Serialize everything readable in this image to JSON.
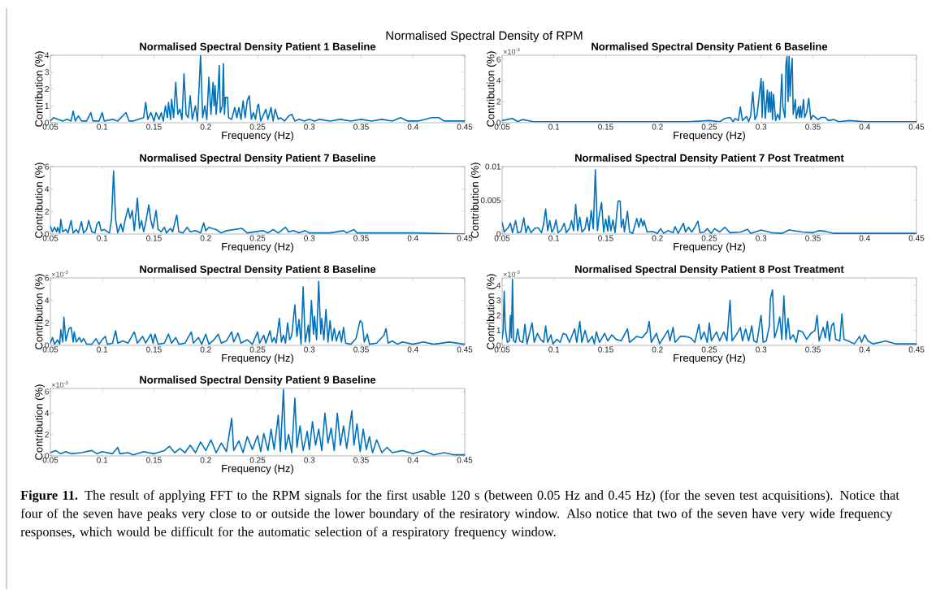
{
  "chart_data": [
    {
      "type": "line",
      "title": "Normalised Spectral Density Patient 1 Baseline",
      "xlabel": "Frequency (Hz)",
      "ylabel": "Contribution (%)",
      "color": "#0072bd",
      "xlim": [
        0.05,
        0.45
      ],
      "ylim": [
        0,
        4
      ],
      "xticks": [
        0.05,
        0.1,
        0.15,
        0.2,
        0.25,
        0.3,
        0.35,
        0.4,
        0.45
      ],
      "yticks": [
        0,
        1,
        2,
        3,
        4
      ],
      "annotations": [
        "Normalised Spectral Density of RPM",
        "**Figure 11.** The result of applying FFT to the RPM signals for the first usable 120 s (between 0.05 Hz and 0.45 Hz) (for the seven test acquisitions). Notice that four of the seven have peaks very close to or outside the lower boundary of the resiratory window. Also notice that two of the seven have very wide frequency responses, which would be difficult for the automatic selection of a respiratory frequency window."
      ],
      "x": [
        0.05,
        0.053,
        0.057,
        0.062,
        0.066,
        0.07,
        0.072,
        0.074,
        0.077,
        0.08,
        0.085,
        0.089,
        0.091,
        0.097,
        0.1,
        0.102,
        0.11,
        0.115,
        0.123,
        0.126,
        0.13,
        0.135,
        0.14,
        0.142,
        0.144,
        0.147,
        0.15,
        0.152,
        0.155,
        0.157,
        0.159,
        0.161,
        0.163,
        0.164,
        0.166,
        0.167,
        0.169,
        0.171,
        0.173,
        0.175,
        0.177,
        0.179,
        0.181,
        0.183,
        0.185,
        0.187,
        0.19,
        0.192,
        0.195,
        0.197,
        0.199,
        0.201,
        0.203,
        0.205,
        0.207,
        0.208,
        0.209,
        0.21,
        0.212,
        0.213,
        0.214,
        0.216,
        0.217,
        0.218,
        0.219,
        0.221,
        0.222,
        0.225,
        0.228,
        0.23,
        0.232,
        0.234,
        0.236,
        0.238,
        0.24,
        0.242,
        0.244,
        0.246,
        0.248,
        0.25,
        0.251,
        0.253,
        0.256,
        0.258,
        0.26,
        0.263,
        0.265,
        0.267,
        0.27,
        0.272,
        0.276,
        0.28,
        0.283,
        0.286,
        0.29,
        0.295,
        0.3,
        0.305,
        0.31,
        0.32,
        0.33,
        0.34,
        0.35,
        0.36,
        0.37,
        0.38,
        0.388,
        0.395,
        0.405,
        0.418,
        0.425,
        0.43,
        0.44,
        0.45
      ],
      "values": [
        0.1,
        0.3,
        0.2,
        0.1,
        0.2,
        0.1,
        0.7,
        0.1,
        0.4,
        0.1,
        0.1,
        0.6,
        0.1,
        0.1,
        0.6,
        0.1,
        0.2,
        0.1,
        0.6,
        0.1,
        0.1,
        0.2,
        0.3,
        1.2,
        0.2,
        0.6,
        0.1,
        0.6,
        0.2,
        0.6,
        0.1,
        1.0,
        0.3,
        1.2,
        0.2,
        1.4,
        0.3,
        2.4,
        0.5,
        0.8,
        0.2,
        2.9,
        0.5,
        0.3,
        1.6,
        0.2,
        1.0,
        0.1,
        4.0,
        0.3,
        1.0,
        0.2,
        2.7,
        0.5,
        2.4,
        1.0,
        2.2,
        0.5,
        2.0,
        3.4,
        0.6,
        1.0,
        3.5,
        0.5,
        1.5,
        1.5,
        0.3,
        0.2,
        0.9,
        0.3,
        0.9,
        0.2,
        1.3,
        0.3,
        1.3,
        1.6,
        0.2,
        0.6,
        0.2,
        1.0,
        1.1,
        0.1,
        0.5,
        0.8,
        0.2,
        0.9,
        0.1,
        0.8,
        0.2,
        0.3,
        0.1,
        0.4,
        0.5,
        0.1,
        0.2,
        0.1,
        0.2,
        0.1,
        0.2,
        0.1,
        0.2,
        0.1,
        0.2,
        0.1,
        0.2,
        0.1,
        0.3,
        0.1,
        0.1,
        0.3,
        0.3,
        0.1,
        0.1,
        0.1
      ]
    },
    {
      "type": "line",
      "title": "Normalised Spectral Density Patient 6 Baseline",
      "xlabel": "Frequency (Hz)",
      "ylabel": "Contribution (%)",
      "color": "#0072bd",
      "xlim": [
        0.05,
        0.45
      ],
      "ylim": [
        0,
        6.4
      ],
      "xticks": [
        0.05,
        0.1,
        0.15,
        0.2,
        0.25,
        0.3,
        0.35,
        0.4,
        0.45
      ],
      "yticks": [
        0,
        2,
        4,
        6
      ],
      "annotations": [
        "×10$^{-3}$"
      ],
      "x": [
        0.05,
        0.06,
        0.065,
        0.07,
        0.08,
        0.1,
        0.13,
        0.16,
        0.2,
        0.23,
        0.25,
        0.26,
        0.265,
        0.27,
        0.273,
        0.275,
        0.278,
        0.28,
        0.282,
        0.286,
        0.288,
        0.29,
        0.292,
        0.294,
        0.296,
        0.298,
        0.3,
        0.301,
        0.302,
        0.304,
        0.306,
        0.307,
        0.308,
        0.309,
        0.31,
        0.311,
        0.312,
        0.314,
        0.316,
        0.318,
        0.32,
        0.321,
        0.323,
        0.324,
        0.325,
        0.326,
        0.327,
        0.328,
        0.329,
        0.33,
        0.331,
        0.333,
        0.334,
        0.336,
        0.337,
        0.338,
        0.339,
        0.341,
        0.342,
        0.344,
        0.346,
        0.348,
        0.35,
        0.355,
        0.358,
        0.362,
        0.365,
        0.37,
        0.375,
        0.385,
        0.4,
        0.45
      ],
      "values": [
        0.2,
        0.4,
        0.1,
        0.3,
        0.1,
        0.1,
        0.1,
        0.1,
        0.1,
        0.1,
        0.2,
        0.1,
        0.4,
        0.5,
        0.1,
        0.4,
        0.2,
        1.5,
        0.2,
        0.6,
        0.1,
        0.7,
        2.9,
        0.3,
        0.7,
        2.4,
        4.2,
        0.5,
        3.9,
        0.4,
        3.1,
        1.0,
        2.9,
        1.0,
        2.9,
        0.3,
        2.7,
        0.2,
        0.8,
        0.3,
        4.6,
        1.5,
        0.5,
        5.6,
        6.3,
        2.0,
        6.3,
        2.5,
        4.9,
        6.1,
        0.8,
        2.2,
        0.4,
        1.5,
        0.5,
        1.6,
        0.5,
        2.2,
        0.5,
        1.0,
        2.3,
        0.3,
        0.7,
        0.3,
        0.5,
        0.5,
        0.2,
        0.3,
        0.1,
        0.2,
        0.1,
        0.1
      ]
    },
    {
      "type": "line",
      "title": "Normalised Spectral Density Patient 7 Baseline",
      "xlabel": "Frequency (Hz)",
      "ylabel": "Contribution (%)",
      "color": "#0072bd",
      "xlim": [
        0.05,
        0.45
      ],
      "ylim": [
        0,
        6
      ],
      "xticks": [
        0.05,
        0.1,
        0.15,
        0.2,
        0.25,
        0.3,
        0.35,
        0.4,
        0.45
      ],
      "yticks": [
        0,
        2,
        4,
        6
      ],
      "x": [
        0.05,
        0.052,
        0.054,
        0.056,
        0.057,
        0.059,
        0.06,
        0.062,
        0.065,
        0.067,
        0.07,
        0.072,
        0.075,
        0.077,
        0.08,
        0.082,
        0.085,
        0.087,
        0.09,
        0.093,
        0.095,
        0.097,
        0.099,
        0.102,
        0.105,
        0.107,
        0.109,
        0.111,
        0.113,
        0.115,
        0.118,
        0.12,
        0.122,
        0.125,
        0.127,
        0.129,
        0.131,
        0.134,
        0.136,
        0.138,
        0.14,
        0.142,
        0.145,
        0.147,
        0.149,
        0.152,
        0.154,
        0.157,
        0.16,
        0.162,
        0.166,
        0.168,
        0.172,
        0.174,
        0.178,
        0.182,
        0.185,
        0.19,
        0.195,
        0.198,
        0.2,
        0.203,
        0.206,
        0.21,
        0.215,
        0.22,
        0.235,
        0.24,
        0.255,
        0.26,
        0.265,
        0.27,
        0.277,
        0.28,
        0.285,
        0.29,
        0.296,
        0.3,
        0.32,
        0.333,
        0.336,
        0.343,
        0.346,
        0.36,
        0.38,
        0.4,
        0.45
      ],
      "values": [
        0.7,
        0.2,
        0.6,
        0.2,
        0.6,
        0.1,
        1.3,
        0.2,
        0.4,
        0.1,
        1.2,
        0.1,
        0.4,
        0.1,
        1.1,
        0.1,
        0.4,
        1.2,
        0.2,
        0.1,
        0.9,
        1.1,
        0.3,
        0.4,
        0.2,
        0.1,
        1.3,
        5.6,
        1.3,
        0.1,
        0.9,
        0.2,
        1.2,
        2.3,
        1.4,
        2.1,
        0.3,
        3.2,
        0.5,
        1.2,
        0.2,
        1.0,
        2.6,
        1.2,
        0.5,
        2.1,
        0.4,
        0.2,
        0.6,
        0.1,
        0.5,
        0.2,
        1.7,
        0.2,
        0.1,
        0.6,
        0.2,
        0.3,
        0.1,
        1.0,
        0.3,
        0.6,
        0.5,
        0.4,
        0.1,
        0.3,
        0.5,
        0.1,
        0.3,
        0.1,
        0.4,
        0.1,
        0.6,
        0.2,
        0.3,
        0.1,
        0.3,
        0.1,
        0.1,
        0.3,
        0.1,
        0.4,
        0.1,
        0.1,
        0.1,
        0.1,
        0
      ]
    },
    {
      "type": "line",
      "title": "Normalised Spectral Density Patient 7 Post Treatment",
      "xlabel": "Frequency (Hz)",
      "ylabel": "Contribution (%)",
      "color": "#0072bd",
      "xlim": [
        0.05,
        0.45
      ],
      "ylim": [
        0,
        0.01
      ],
      "xticks": [
        0.05,
        0.1,
        0.15,
        0.2,
        0.25,
        0.3,
        0.35,
        0.4,
        0.45
      ],
      "yticks": [
        0,
        0.005,
        0.01
      ],
      "x": [
        0.05,
        0.052,
        0.056,
        0.058,
        0.06,
        0.063,
        0.065,
        0.068,
        0.071,
        0.073,
        0.075,
        0.078,
        0.082,
        0.085,
        0.088,
        0.09,
        0.092,
        0.094,
        0.096,
        0.098,
        0.1,
        0.102,
        0.104,
        0.107,
        0.11,
        0.112,
        0.115,
        0.117,
        0.119,
        0.121,
        0.123,
        0.125,
        0.127,
        0.13,
        0.132,
        0.134,
        0.136,
        0.138,
        0.14,
        0.142,
        0.144,
        0.146,
        0.148,
        0.15,
        0.152,
        0.153,
        0.155,
        0.157,
        0.159,
        0.161,
        0.162,
        0.164,
        0.165,
        0.167,
        0.168,
        0.171,
        0.173,
        0.176,
        0.18,
        0.182,
        0.184,
        0.186,
        0.187,
        0.19,
        0.195,
        0.2,
        0.203,
        0.206,
        0.21,
        0.215,
        0.217,
        0.22,
        0.225,
        0.227,
        0.23,
        0.233,
        0.236,
        0.239,
        0.241,
        0.245,
        0.248,
        0.252,
        0.255,
        0.26,
        0.265,
        0.27,
        0.28,
        0.287,
        0.29,
        0.3,
        0.31,
        0.32,
        0.327,
        0.34,
        0.35,
        0.356,
        0.362,
        0.37,
        0.4,
        0.42,
        0.45
      ],
      "values": [
        0.0018,
        0.0003,
        0.001,
        0.0016,
        0.0002,
        0.002,
        0.0002,
        0.0003,
        0.0024,
        0.0002,
        0.0012,
        0.0002,
        0.0009,
        0.0009,
        0.0002,
        0.0014,
        0.0037,
        0.0005,
        0.002,
        0.0003,
        0.0008,
        0.0021,
        0.0002,
        0.0006,
        0.0016,
        0.0002,
        0.0008,
        0.002,
        0.0005,
        0.0044,
        0.0005,
        0.0025,
        0.0003,
        0.0008,
        0.0025,
        0.0005,
        0.0035,
        0.0008,
        0.0095,
        0.0005,
        0.003,
        0.0047,
        0.0003,
        0.0022,
        0.0004,
        0.0027,
        0.0005,
        0.0021,
        0.0002,
        0.0035,
        0.0049,
        0.0049,
        0.001,
        0.0022,
        0.0003,
        0.0034,
        0.0003,
        0.0001,
        0.0023,
        0.001,
        0.0023,
        0.0012,
        0.002,
        0.0003,
        0.0004,
        0.0001,
        0.0008,
        0.0001,
        0.0005,
        0.0002,
        0.0011,
        0.0001,
        0.0016,
        0.0003,
        0.001,
        0.0003,
        0.001,
        0.0019,
        0.0002,
        0.0003,
        0.0008,
        0.0001,
        0.0008,
        0.0003,
        0.001,
        0.0002,
        0.0003,
        0.0007,
        0.0001,
        0.0006,
        0.0002,
        0.0001,
        0.0006,
        0.0003,
        0.0002,
        0.0005,
        0.0004,
        0.0001,
        0.0001,
        0.0001,
        0.0001
      ]
    },
    {
      "type": "line",
      "title": "Normalised Spectral Density Patient 8 Baseline",
      "xlabel": "Frequency (Hz)",
      "ylabel": "Contribution (%)",
      "color": "#0072bd",
      "xlim": [
        0.05,
        0.45
      ],
      "ylim": [
        0,
        6
      ],
      "xticks": [
        0.05,
        0.1,
        0.15,
        0.2,
        0.25,
        0.3,
        0.35,
        0.4,
        0.45
      ],
      "yticks": [
        0,
        2,
        4,
        6
      ],
      "annotations": [
        "×10$^{-3}$"
      ],
      "x": [
        0.05,
        0.052,
        0.054,
        0.057,
        0.059,
        0.06,
        0.062,
        0.063,
        0.065,
        0.066,
        0.068,
        0.07,
        0.072,
        0.073,
        0.075,
        0.078,
        0.08,
        0.082,
        0.085,
        0.09,
        0.094,
        0.097,
        0.1,
        0.103,
        0.105,
        0.11,
        0.113,
        0.115,
        0.12,
        0.125,
        0.131,
        0.134,
        0.139,
        0.142,
        0.147,
        0.149,
        0.151,
        0.154,
        0.16,
        0.164,
        0.167,
        0.171,
        0.174,
        0.18,
        0.186,
        0.188,
        0.193,
        0.196,
        0.2,
        0.203,
        0.208,
        0.212,
        0.215,
        0.22,
        0.225,
        0.227,
        0.231,
        0.234,
        0.24,
        0.245,
        0.25,
        0.252,
        0.256,
        0.258,
        0.262,
        0.264,
        0.266,
        0.268,
        0.271,
        0.273,
        0.275,
        0.277,
        0.279,
        0.281,
        0.283,
        0.286,
        0.288,
        0.29,
        0.292,
        0.294,
        0.296,
        0.299,
        0.3,
        0.302,
        0.304,
        0.305,
        0.307,
        0.309,
        0.311,
        0.312,
        0.314,
        0.316,
        0.318,
        0.32,
        0.322,
        0.324,
        0.326,
        0.329,
        0.331,
        0.333,
        0.335,
        0.34,
        0.345,
        0.349,
        0.351,
        0.353,
        0.356,
        0.358,
        0.365,
        0.372,
        0.374,
        0.376,
        0.38,
        0.385,
        0.39,
        0.4,
        0.41,
        0.42,
        0.435,
        0.45
      ],
      "values": [
        0.2,
        0.7,
        0.1,
        0.5,
        0.1,
        1.4,
        0.3,
        2.5,
        0.4,
        0.8,
        1.5,
        1.6,
        0.3,
        1.2,
        0.3,
        0.7,
        0.3,
        0.6,
        0.1,
        0.1,
        0.6,
        0.1,
        0.5,
        0.8,
        0.1,
        0.2,
        1.3,
        0.2,
        0.4,
        0.2,
        1.2,
        0.2,
        0.8,
        0.2,
        1.0,
        0.2,
        1.0,
        0.1,
        0.2,
        1.0,
        0.2,
        0.7,
        0.1,
        0.2,
        1.2,
        0.2,
        0.7,
        0.1,
        1.0,
        0.1,
        0.5,
        1.0,
        0.2,
        0.4,
        1.2,
        0.3,
        1.1,
        0.2,
        0.5,
        0.1,
        1.2,
        0.2,
        0.9,
        0.2,
        1.3,
        0.3,
        0.7,
        0.2,
        2.4,
        0.3,
        0.9,
        0.2,
        2.0,
        0.5,
        0.9,
        3.6,
        0.8,
        2.3,
        0.1,
        5.2,
        0.3,
        1.8,
        0.3,
        4.0,
        1.0,
        2.6,
        0.5,
        5.7,
        1.0,
        2.4,
        0.5,
        3.2,
        0.3,
        2.2,
        0.4,
        1.5,
        0.4,
        1.3,
        0.3,
        1.6,
        0.2,
        0.1,
        0.6,
        2.2,
        2.0,
        0.3,
        1.0,
        0.1,
        0.2,
        0.9,
        1.5,
        0.2,
        0.4,
        0.1,
        0.3,
        0.1,
        0.3,
        0.1,
        0.3,
        0.1
      ]
    },
    {
      "type": "line",
      "title": "Normalised Spectral Density Patient 8 Post Treatment",
      "xlabel": "Frequency (Hz)",
      "ylabel": "Contribution (%)",
      "color": "#0072bd",
      "xlim": [
        0.05,
        0.45
      ],
      "ylim": [
        0,
        4.5
      ],
      "xticks": [
        0.05,
        0.1,
        0.15,
        0.2,
        0.25,
        0.3,
        0.35,
        0.4,
        0.45
      ],
      "yticks": [
        0,
        1,
        2,
        3,
        4
      ],
      "annotations": [
        "×10$^{-3}$"
      ],
      "x": [
        0.05,
        0.051,
        0.052,
        0.053,
        0.055,
        0.057,
        0.058,
        0.059,
        0.06,
        0.061,
        0.063,
        0.065,
        0.067,
        0.07,
        0.072,
        0.074,
        0.076,
        0.079,
        0.081,
        0.084,
        0.087,
        0.09,
        0.092,
        0.094,
        0.097,
        0.099,
        0.103,
        0.106,
        0.109,
        0.112,
        0.115,
        0.12,
        0.122,
        0.125,
        0.127,
        0.13,
        0.133,
        0.137,
        0.139,
        0.141,
        0.144,
        0.149,
        0.152,
        0.156,
        0.16,
        0.165,
        0.171,
        0.173,
        0.18,
        0.185,
        0.19,
        0.192,
        0.194,
        0.199,
        0.202,
        0.21,
        0.212,
        0.215,
        0.217,
        0.222,
        0.227,
        0.232,
        0.236,
        0.24,
        0.242,
        0.245,
        0.248,
        0.25,
        0.252,
        0.257,
        0.26,
        0.264,
        0.267,
        0.27,
        0.272,
        0.276,
        0.28,
        0.282,
        0.285,
        0.288,
        0.291,
        0.293,
        0.296,
        0.299,
        0.3,
        0.302,
        0.305,
        0.308,
        0.309,
        0.311,
        0.313,
        0.316,
        0.318,
        0.32,
        0.322,
        0.324,
        0.326,
        0.328,
        0.331,
        0.334,
        0.336,
        0.34,
        0.344,
        0.348,
        0.352,
        0.354,
        0.356,
        0.36,
        0.362,
        0.364,
        0.366,
        0.368,
        0.37,
        0.372,
        0.376,
        0.378,
        0.38,
        0.384,
        0.39,
        0.395,
        0.397,
        0.4,
        0.403,
        0.408,
        0.415,
        0.42,
        0.43,
        0.45
      ],
      "values": [
        0.4,
        1.0,
        3.6,
        1.2,
        0.2,
        0.3,
        2.0,
        0.5,
        4.4,
        0.3,
        0.2,
        1.1,
        0.3,
        0.2,
        1.4,
        0.1,
        0.7,
        1.5,
        0.2,
        0.8,
        0.4,
        0.2,
        1.3,
        0.2,
        0.7,
        0.1,
        0.4,
        0.2,
        0.8,
        0.7,
        0.2,
        1.1,
        0.2,
        1.6,
        0.2,
        1.0,
        0.2,
        0.6,
        0.1,
        0.9,
        0.2,
        0.8,
        0.3,
        0.7,
        0.4,
        0.3,
        1.1,
        0.2,
        0.6,
        0.5,
        0.9,
        1.6,
        0.2,
        0.8,
        0.1,
        1.0,
        0.3,
        1.2,
        0.2,
        0.6,
        0.6,
        0.5,
        0.2,
        1.4,
        0.4,
        0.9,
        0.2,
        1.5,
        0.3,
        0.9,
        0.3,
        0.9,
        0.3,
        3.0,
        0.3,
        0.7,
        1.2,
        0.3,
        1.1,
        0.3,
        1.3,
        0.3,
        0.2,
        1.6,
        2.0,
        0.2,
        0.3,
        1.3,
        3.1,
        3.7,
        0.5,
        1.2,
        1.9,
        0.4,
        3.3,
        0.4,
        1.8,
        0.4,
        0.7,
        0.2,
        1.0,
        0.9,
        0.4,
        0.8,
        1.0,
        2.0,
        0.3,
        1.2,
        0.5,
        1.6,
        0.3,
        1.3,
        1.5,
        0.4,
        0.3,
        2.1,
        0.4,
        0.3,
        0.1,
        0.6,
        0.2,
        0.7,
        0.3,
        0.1,
        0.2,
        0.3,
        0.1,
        0.1
      ]
    },
    {
      "type": "line",
      "title": "Normalised Spectral Density Patient 9 Baseline",
      "xlabel": "Frequency (Hz)",
      "ylabel": "Contribution (%)",
      "color": "#0072bd",
      "xlim": [
        0.05,
        0.45
      ],
      "ylim": [
        0,
        6.3
      ],
      "xticks": [
        0.05,
        0.1,
        0.15,
        0.2,
        0.25,
        0.3,
        0.35,
        0.4,
        0.45
      ],
      "yticks": [
        0,
        2,
        4,
        6
      ],
      "annotations": [
        "×10$^{-3}$"
      ],
      "x": [
        0.05,
        0.055,
        0.06,
        0.065,
        0.07,
        0.08,
        0.09,
        0.095,
        0.1,
        0.11,
        0.115,
        0.117,
        0.125,
        0.13,
        0.14,
        0.15,
        0.16,
        0.165,
        0.17,
        0.175,
        0.18,
        0.185,
        0.19,
        0.195,
        0.2,
        0.205,
        0.21,
        0.215,
        0.22,
        0.225,
        0.227,
        0.232,
        0.236,
        0.24,
        0.245,
        0.25,
        0.253,
        0.256,
        0.26,
        0.263,
        0.266,
        0.27,
        0.272,
        0.275,
        0.277,
        0.28,
        0.283,
        0.286,
        0.288,
        0.291,
        0.294,
        0.298,
        0.3,
        0.303,
        0.306,
        0.309,
        0.312,
        0.315,
        0.318,
        0.321,
        0.324,
        0.327,
        0.33,
        0.333,
        0.336,
        0.341,
        0.343,
        0.346,
        0.349,
        0.352,
        0.355,
        0.358,
        0.361,
        0.365,
        0.37,
        0.375,
        0.38,
        0.39,
        0.4,
        0.41,
        0.42,
        0.43,
        0.44,
        0.45
      ],
      "values": [
        0.3,
        0.5,
        0.2,
        0.4,
        0.2,
        0.3,
        0.5,
        0.2,
        0.4,
        0.2,
        0.8,
        0.2,
        0.3,
        0.1,
        0.4,
        0.2,
        0.5,
        0.9,
        0.3,
        0.7,
        0.3,
        1.0,
        0.3,
        1.3,
        0.5,
        1.5,
        0.3,
        1.2,
        0.4,
        3.5,
        0.5,
        1.4,
        0.3,
        1.8,
        0.6,
        1.9,
        0.4,
        2.1,
        0.5,
        2.5,
        0.6,
        3.8,
        0.4,
        6.2,
        0.6,
        2.0,
        0.3,
        5.4,
        0.8,
        2.8,
        0.5,
        2.3,
        0.6,
        3.2,
        1.0,
        2.5,
        0.5,
        4.0,
        1.2,
        2.6,
        0.5,
        4.0,
        1.0,
        2.8,
        0.7,
        4.2,
        1.0,
        3.0,
        0.4,
        2.5,
        0.6,
        1.8,
        0.3,
        1.5,
        0.3,
        0.8,
        0.3,
        0.5,
        0.2,
        0.5,
        0.1,
        0.3,
        0.1,
        0.1
      ]
    }
  ]
}
